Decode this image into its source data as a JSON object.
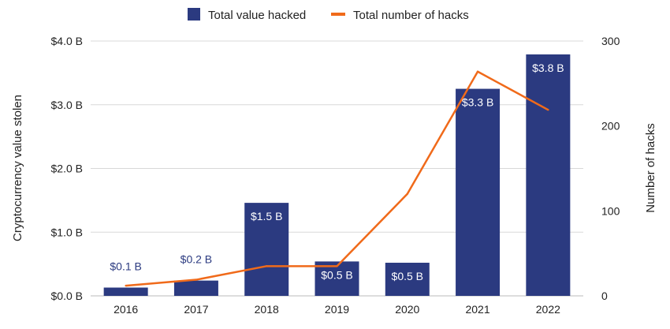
{
  "chart_data": {
    "type": "bar",
    "categories": [
      "2016",
      "2017",
      "2018",
      "2019",
      "2020",
      "2021",
      "2022"
    ],
    "series": [
      {
        "name": "Total value hacked",
        "kind": "bar",
        "axis": "left",
        "values": [
          0.13,
          0.24,
          1.46,
          0.54,
          0.52,
          3.25,
          3.79
        ],
        "labels": [
          "$0.1 B",
          "$0.2 B",
          "$1.5 B",
          "$0.5 B",
          "$0.5 B",
          "$3.3 B",
          "$3.8 B"
        ]
      },
      {
        "name": "Total number of hacks",
        "kind": "line",
        "axis": "right",
        "values": [
          12,
          19,
          35,
          35,
          120,
          264,
          219
        ]
      }
    ],
    "ylabel": "Cryptocurrency value stolen",
    "ylabel_right": "Number of hacks",
    "ylim": [
      0,
      4
    ],
    "ylim_right": [
      0,
      300
    ],
    "y_ticks": [
      "$0.0 B",
      "$1.0 B",
      "$2.0 B",
      "$3.0 B",
      "$4.0 B"
    ],
    "y_ticks_right": [
      "0",
      "100",
      "200",
      "300"
    ],
    "grid": true,
    "legend_position": "top-center",
    "colors": {
      "bar": "#2b3a80",
      "line": "#f06a1a",
      "grid": "#d8d8d8",
      "text": "#222222"
    }
  }
}
